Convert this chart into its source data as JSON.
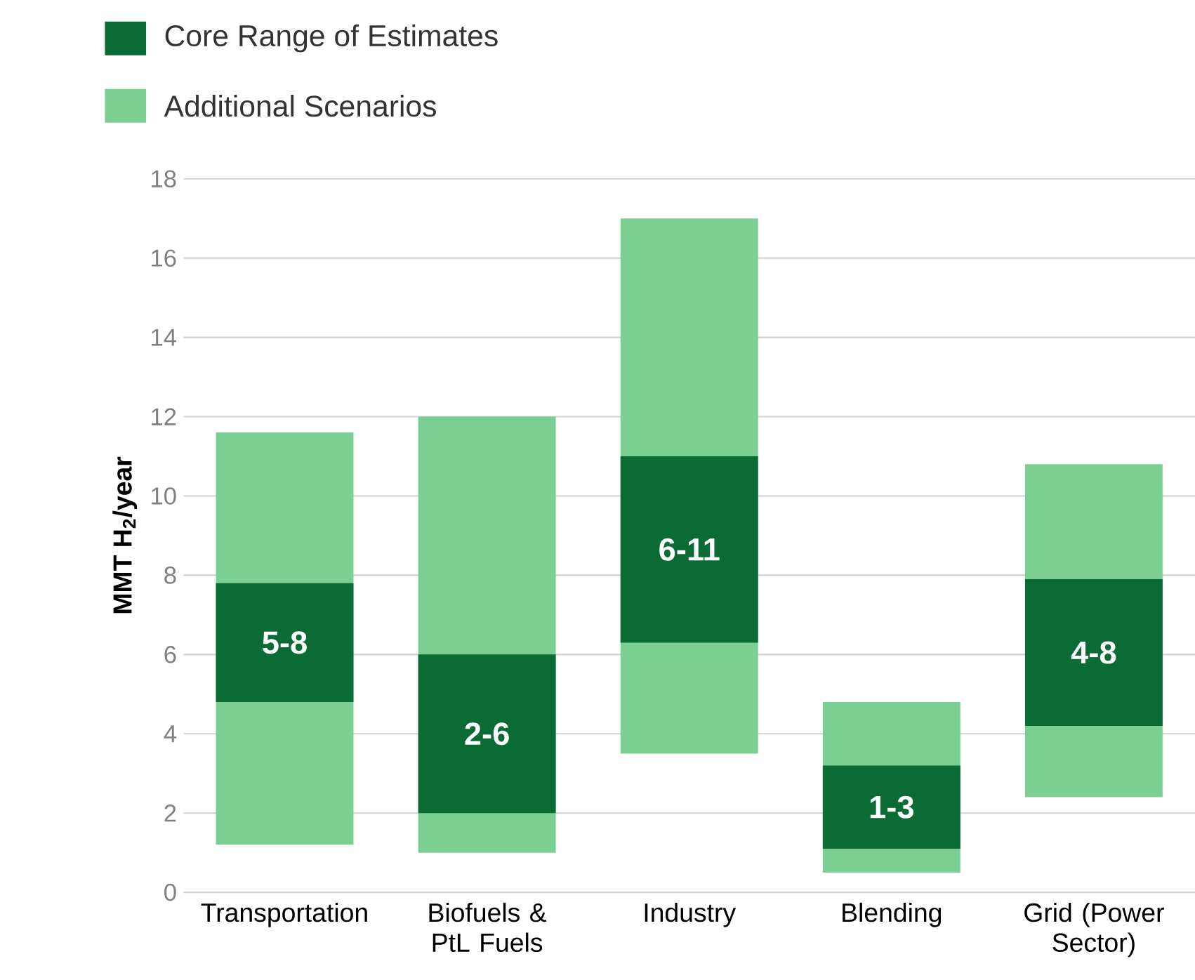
{
  "chart_data": {
    "type": "bar",
    "ylabel": "MMT H$_{2}$/year",
    "categories": [
      "Transportation",
      "Biofuels & PtL Fuels",
      "Industry",
      "Blending",
      "Grid (Power Sector)"
    ],
    "series": [
      {
        "name": "Core Range of Estimates",
        "color": "#0b6b35",
        "base": [
          4.8,
          2.0,
          6.3,
          1.1,
          4.2
        ],
        "values": [
          3.0,
          4.0,
          4.7,
          2.1,
          3.7
        ],
        "value_labels": [
          "5-8",
          "2-6",
          "6-11",
          "1-3",
          "4-8"
        ]
      },
      {
        "name": "Additional Scenarios",
        "color": "#7ccf93",
        "base": [
          1.2,
          1.0,
          3.5,
          0.5,
          2.4
        ],
        "values": [
          10.4,
          11.0,
          13.5,
          4.3,
          8.4
        ]
      }
    ],
    "ylim": [
      0,
      18
    ],
    "yticks": [
      0,
      2,
      4,
      6,
      8,
      10,
      12,
      14,
      16,
      18
    ],
    "grid": "y",
    "legend": "top left"
  }
}
